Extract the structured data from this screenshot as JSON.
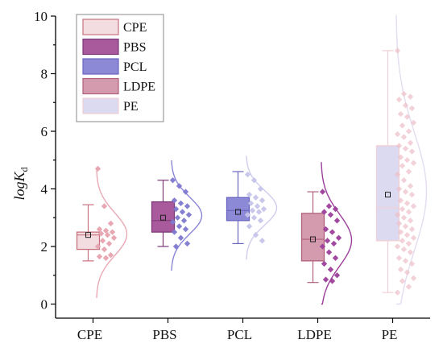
{
  "chart_data": {
    "type": "box",
    "ylabel": {
      "base": "logK",
      "subscript": "d"
    },
    "categories": [
      "CPE",
      "PBS",
      "PCL",
      "LDPE",
      "PE"
    ],
    "ylim": [
      0,
      10
    ],
    "yticks": [
      0,
      2,
      4,
      6,
      8,
      10
    ],
    "legend": {
      "placement": "top-left",
      "entries": [
        "CPE",
        "PBS",
        "PCL",
        "LDPE",
        "PE"
      ]
    },
    "colors": {
      "CPE": {
        "fill": "#f3dde0",
        "edge": "#c9727f",
        "points": "#e6a3b0",
        "curve": "#e8a9b5"
      },
      "PBS": {
        "fill": "#a85a9c",
        "edge": "#7c3a78",
        "points": "#7e79cf",
        "curve": "#8a86d6"
      },
      "PCL": {
        "fill": "#8c8ad6",
        "edge": "#6a66c0",
        "points": "#c6c4ea",
        "curve": "#cfcdee"
      },
      "LDPE": {
        "fill": "#d49aae",
        "edge": "#b0607e",
        "points": "#9b3f9a",
        "curve": "#9b3f9a"
      },
      "PE": {
        "fill": "#dcdaf0",
        "edge": "#f0d0d6",
        "points": "#ecbfc8",
        "curve": "#e4dcef"
      }
    },
    "series": [
      {
        "name": "CPE",
        "whisker_low": 1.5,
        "q1": 1.9,
        "median": 2.4,
        "q3": 2.5,
        "whisker_high": 3.45,
        "mean": 2.4,
        "points": [
          4.7,
          3.4,
          2.8,
          2.6,
          2.55,
          2.5,
          2.45,
          2.4,
          2.3,
          2.2,
          2.1,
          2.0,
          1.9,
          1.7,
          1.65,
          1.6
        ]
      },
      {
        "name": "PBS",
        "whisker_low": 2.0,
        "q1": 2.5,
        "median": 2.9,
        "q3": 3.55,
        "whisker_high": 4.3,
        "mean": 3.0,
        "points": [
          4.3,
          4.1,
          3.9,
          3.6,
          3.5,
          3.4,
          3.3,
          3.2,
          3.1,
          3.0,
          2.9,
          2.85,
          2.7,
          2.6,
          2.5,
          2.3,
          2.1,
          2.0
        ]
      },
      {
        "name": "PCL",
        "whisker_low": 2.1,
        "q1": 2.9,
        "median": 3.25,
        "q3": 3.7,
        "whisker_high": 4.6,
        "mean": 3.2,
        "points": [
          4.5,
          4.3,
          4.0,
          3.8,
          3.7,
          3.6,
          3.5,
          3.4,
          3.3,
          3.25,
          3.2,
          3.1,
          3.0,
          2.9,
          2.7,
          2.4,
          2.2
        ]
      },
      {
        "name": "LDPE",
        "whisker_low": 0.75,
        "q1": 1.5,
        "median": 2.25,
        "q3": 3.15,
        "whisker_high": 3.9,
        "mean": 2.25,
        "points": [
          3.9,
          3.4,
          3.3,
          3.2,
          3.1,
          2.9,
          2.6,
          2.5,
          2.3,
          2.2,
          2.1,
          2.0,
          1.8,
          1.6,
          1.4,
          1.2,
          1.0,
          0.85,
          0.8
        ]
      },
      {
        "name": "PE",
        "whisker_low": 0.4,
        "q1": 2.2,
        "median": 3.35,
        "q3": 5.5,
        "whisker_high": 8.8,
        "mean": 3.8,
        "points": [
          8.8,
          7.3,
          7.2,
          7.1,
          6.9,
          6.8,
          6.6,
          6.5,
          6.3,
          6.2,
          6.0,
          5.9,
          5.8,
          5.6,
          5.5,
          5.4,
          5.3,
          5.1,
          5.0,
          4.9,
          4.8,
          4.6,
          4.5,
          4.3,
          4.1,
          4.0,
          3.9,
          3.8,
          3.6,
          3.5,
          3.4,
          3.3,
          3.2,
          3.1,
          3.0,
          2.9,
          2.8,
          2.7,
          2.6,
          2.5,
          2.4,
          2.3,
          2.2,
          2.1,
          2.0,
          1.9,
          1.8,
          1.6,
          1.5,
          1.4,
          1.2,
          1.1,
          0.9,
          0.8,
          0.6,
          0.4
        ]
      }
    ]
  }
}
